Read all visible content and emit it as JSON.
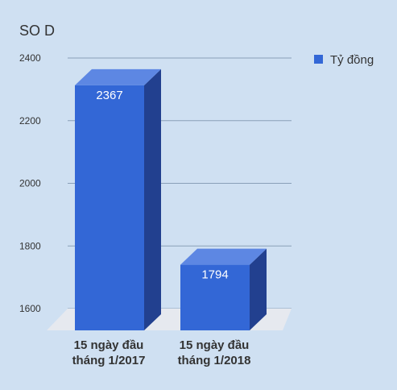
{
  "chart_data": {
    "type": "bar",
    "title": "SO D",
    "categories": [
      [
        "15 ngày đầu",
        "tháng 1/2017"
      ],
      [
        "15 ngày đầu",
        "tháng 1/2018"
      ]
    ],
    "series": [
      {
        "name": "Tỷ đồng",
        "values": [
          2367,
          1794
        ]
      }
    ],
    "data_labels": [
      "2367",
      "1794"
    ],
    "yticks": [
      "2400",
      "2200",
      "2000",
      "1800",
      "1600"
    ],
    "ylim": [
      1600,
      2400
    ],
    "grid": true,
    "legend": "top-right",
    "style_3d": true
  },
  "colors": {
    "background": "#cfe0f2",
    "bar_front": "#3367d6",
    "bar_top": "#5d87e3",
    "bar_side": "#22408f",
    "floor": "#e6e9ef",
    "grid": "#8aa0b8",
    "text": "#333333",
    "data_label": "#ffffff"
  }
}
